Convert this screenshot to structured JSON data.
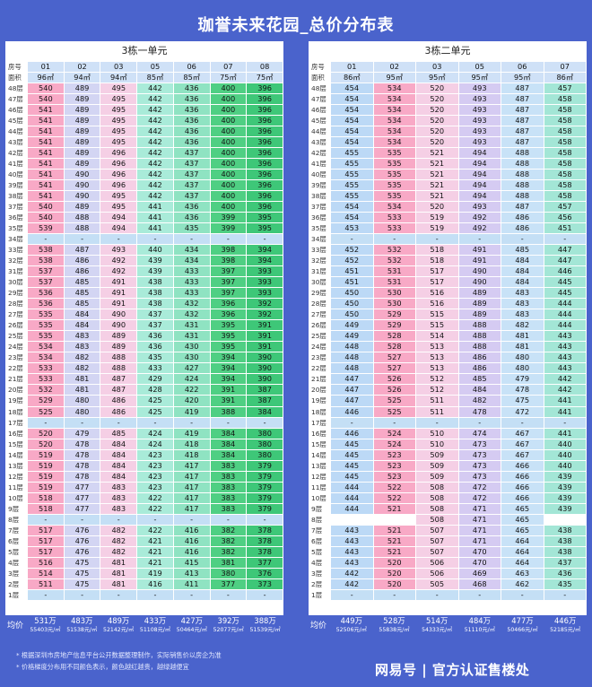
{
  "title": "珈誉未来花园_总价分布表",
  "header_labels": {
    "unit": "房号",
    "area": "面积",
    "avg": "均价"
  },
  "blank_mark": "-",
  "colors": {
    "background": "#4a63cc",
    "high": "#f8a9c6",
    "low": "#3ec778"
  },
  "buildings": [
    {
      "name": "3栋一单元",
      "units": [
        "01",
        "02",
        "03",
        "05",
        "06",
        "07",
        "08"
      ],
      "areas": [
        "96㎡",
        "94㎡",
        "94㎡",
        "85㎡",
        "85㎡",
        "75㎡",
        "75㎡"
      ],
      "col_classes": [
        "c-pink",
        "c-lav",
        "c-lpink",
        "c-teal",
        "c-mint",
        "c-green",
        "c-dgreen"
      ],
      "floors": [
        {
          "f": "48层",
          "v": [
            "540",
            "489",
            "495",
            "442",
            "436",
            "400",
            "396"
          ]
        },
        {
          "f": "47层",
          "v": [
            "540",
            "489",
            "495",
            "442",
            "436",
            "400",
            "396"
          ]
        },
        {
          "f": "46层",
          "v": [
            "541",
            "489",
            "495",
            "442",
            "436",
            "400",
            "396"
          ]
        },
        {
          "f": "45层",
          "v": [
            "541",
            "489",
            "495",
            "442",
            "436",
            "400",
            "396"
          ]
        },
        {
          "f": "44层",
          "v": [
            "541",
            "489",
            "495",
            "442",
            "436",
            "400",
            "396"
          ]
        },
        {
          "f": "43层",
          "v": [
            "541",
            "489",
            "495",
            "442",
            "436",
            "400",
            "396"
          ]
        },
        {
          "f": "42层",
          "v": [
            "541",
            "489",
            "496",
            "442",
            "437",
            "400",
            "396"
          ]
        },
        {
          "f": "41层",
          "v": [
            "541",
            "489",
            "496",
            "442",
            "437",
            "400",
            "396"
          ]
        },
        {
          "f": "40层",
          "v": [
            "541",
            "490",
            "496",
            "442",
            "437",
            "400",
            "396"
          ]
        },
        {
          "f": "39层",
          "v": [
            "541",
            "490",
            "496",
            "442",
            "437",
            "400",
            "396"
          ]
        },
        {
          "f": "38层",
          "v": [
            "541",
            "490",
            "495",
            "442",
            "437",
            "400",
            "396"
          ]
        },
        {
          "f": "37层",
          "v": [
            "540",
            "489",
            "495",
            "441",
            "436",
            "400",
            "396"
          ]
        },
        {
          "f": "36层",
          "v": [
            "540",
            "488",
            "494",
            "441",
            "436",
            "399",
            "395"
          ]
        },
        {
          "f": "35层",
          "v": [
            "539",
            "488",
            "494",
            "441",
            "435",
            "399",
            "395"
          ]
        },
        {
          "f": "34层",
          "gap": true
        },
        {
          "f": "33层",
          "v": [
            "538",
            "487",
            "493",
            "440",
            "434",
            "398",
            "394"
          ]
        },
        {
          "f": "32层",
          "v": [
            "538",
            "486",
            "492",
            "439",
            "434",
            "398",
            "394"
          ]
        },
        {
          "f": "31层",
          "v": [
            "537",
            "486",
            "492",
            "439",
            "433",
            "397",
            "393"
          ]
        },
        {
          "f": "30层",
          "v": [
            "537",
            "485",
            "491",
            "438",
            "433",
            "397",
            "393"
          ]
        },
        {
          "f": "29层",
          "v": [
            "536",
            "485",
            "491",
            "438",
            "433",
            "397",
            "393"
          ]
        },
        {
          "f": "28层",
          "v": [
            "536",
            "485",
            "491",
            "438",
            "432",
            "396",
            "392"
          ]
        },
        {
          "f": "27层",
          "v": [
            "535",
            "484",
            "490",
            "437",
            "432",
            "396",
            "392"
          ]
        },
        {
          "f": "26层",
          "v": [
            "535",
            "484",
            "490",
            "437",
            "431",
            "395",
            "391"
          ]
        },
        {
          "f": "25层",
          "v": [
            "535",
            "483",
            "489",
            "436",
            "431",
            "395",
            "391"
          ]
        },
        {
          "f": "24层",
          "v": [
            "534",
            "483",
            "489",
            "436",
            "430",
            "395",
            "391"
          ]
        },
        {
          "f": "23层",
          "v": [
            "534",
            "482",
            "488",
            "435",
            "430",
            "394",
            "390"
          ]
        },
        {
          "f": "22层",
          "v": [
            "533",
            "482",
            "488",
            "433",
            "427",
            "394",
            "390"
          ]
        },
        {
          "f": "21层",
          "v": [
            "533",
            "481",
            "487",
            "429",
            "424",
            "394",
            "390"
          ]
        },
        {
          "f": "20层",
          "v": [
            "532",
            "481",
            "487",
            "428",
            "422",
            "391",
            "387"
          ]
        },
        {
          "f": "19层",
          "v": [
            "529",
            "480",
            "486",
            "425",
            "420",
            "391",
            "387"
          ]
        },
        {
          "f": "18层",
          "v": [
            "525",
            "480",
            "486",
            "425",
            "419",
            "388",
            "384"
          ]
        },
        {
          "f": "17层",
          "gap": true
        },
        {
          "f": "16层",
          "v": [
            "520",
            "479",
            "485",
            "424",
            "419",
            "384",
            "380"
          ]
        },
        {
          "f": "15层",
          "v": [
            "520",
            "478",
            "484",
            "424",
            "418",
            "384",
            "380"
          ]
        },
        {
          "f": "14层",
          "v": [
            "519",
            "478",
            "484",
            "423",
            "418",
            "384",
            "380"
          ]
        },
        {
          "f": "13层",
          "v": [
            "519",
            "478",
            "484",
            "423",
            "417",
            "383",
            "379"
          ]
        },
        {
          "f": "12层",
          "v": [
            "519",
            "478",
            "484",
            "423",
            "417",
            "383",
            "379"
          ]
        },
        {
          "f": "11层",
          "v": [
            "519",
            "477",
            "483",
            "423",
            "417",
            "383",
            "379"
          ]
        },
        {
          "f": "10层",
          "v": [
            "518",
            "477",
            "483",
            "422",
            "417",
            "383",
            "379"
          ]
        },
        {
          "f": "9层",
          "v": [
            "518",
            "477",
            "483",
            "422",
            "417",
            "383",
            "379"
          ]
        },
        {
          "f": "8层",
          "gap": true
        },
        {
          "f": "7层",
          "v": [
            "517",
            "476",
            "482",
            "422",
            "416",
            "382",
            "378"
          ]
        },
        {
          "f": "6层",
          "v": [
            "517",
            "476",
            "482",
            "421",
            "416",
            "382",
            "378"
          ]
        },
        {
          "f": "5层",
          "v": [
            "517",
            "476",
            "482",
            "421",
            "416",
            "382",
            "378"
          ]
        },
        {
          "f": "4层",
          "v": [
            "516",
            "475",
            "481",
            "421",
            "415",
            "381",
            "377"
          ]
        },
        {
          "f": "3层",
          "v": [
            "514",
            "475",
            "481",
            "419",
            "413",
            "380",
            "376"
          ]
        },
        {
          "f": "2层",
          "v": [
            "511",
            "475",
            "481",
            "416",
            "411",
            "377",
            "373"
          ]
        },
        {
          "f": "1层",
          "gap": true
        }
      ],
      "avg": [
        {
          "p": "531万",
          "u": "55403元/㎡"
        },
        {
          "p": "483万",
          "u": "51538元/㎡"
        },
        {
          "p": "489万",
          "u": "52142元/㎡"
        },
        {
          "p": "433万",
          "u": "51108元/㎡"
        },
        {
          "p": "427万",
          "u": "50464元/㎡"
        },
        {
          "p": "392万",
          "u": "52077元/㎡"
        },
        {
          "p": "388万",
          "u": "51539元/㎡"
        }
      ]
    },
    {
      "name": "3栋二单元",
      "units": [
        "01",
        "02",
        "03",
        "05",
        "06",
        "07"
      ],
      "areas": [
        "86㎡",
        "95㎡",
        "95㎡",
        "95㎡",
        "95㎡",
        "86㎡"
      ],
      "col_classes": [
        "c-blue",
        "c-pink",
        "c-lpink",
        "c-pur",
        "c-lblue",
        "c-aqua"
      ],
      "floors": [
        {
          "f": "48层",
          "v": [
            "454",
            "534",
            "520",
            "493",
            "487",
            "457"
          ]
        },
        {
          "f": "47层",
          "v": [
            "454",
            "534",
            "520",
            "493",
            "487",
            "458"
          ]
        },
        {
          "f": "46层",
          "v": [
            "454",
            "534",
            "520",
            "493",
            "487",
            "458"
          ]
        },
        {
          "f": "45层",
          "v": [
            "454",
            "534",
            "520",
            "493",
            "487",
            "458"
          ]
        },
        {
          "f": "44层",
          "v": [
            "454",
            "534",
            "520",
            "493",
            "487",
            "458"
          ]
        },
        {
          "f": "43层",
          "v": [
            "454",
            "534",
            "520",
            "493",
            "487",
            "458"
          ]
        },
        {
          "f": "42层",
          "v": [
            "455",
            "535",
            "521",
            "494",
            "488",
            "458"
          ]
        },
        {
          "f": "41层",
          "v": [
            "455",
            "535",
            "521",
            "494",
            "488",
            "458"
          ]
        },
        {
          "f": "40层",
          "v": [
            "455",
            "535",
            "521",
            "494",
            "488",
            "458"
          ]
        },
        {
          "f": "39层",
          "v": [
            "455",
            "535",
            "521",
            "494",
            "488",
            "458"
          ]
        },
        {
          "f": "38层",
          "v": [
            "455",
            "535",
            "521",
            "494",
            "488",
            "458"
          ]
        },
        {
          "f": "37层",
          "v": [
            "454",
            "534",
            "520",
            "493",
            "487",
            "457"
          ]
        },
        {
          "f": "36层",
          "v": [
            "454",
            "533",
            "519",
            "492",
            "486",
            "456"
          ]
        },
        {
          "f": "35层",
          "v": [
            "453",
            "533",
            "519",
            "492",
            "486",
            "451"
          ]
        },
        {
          "f": "34层",
          "gap": true
        },
        {
          "f": "33层",
          "v": [
            "452",
            "532",
            "518",
            "491",
            "485",
            "447"
          ]
        },
        {
          "f": "32层",
          "v": [
            "452",
            "532",
            "518",
            "491",
            "484",
            "447"
          ]
        },
        {
          "f": "31层",
          "v": [
            "451",
            "531",
            "517",
            "490",
            "484",
            "446"
          ]
        },
        {
          "f": "30层",
          "v": [
            "451",
            "531",
            "517",
            "490",
            "484",
            "445"
          ]
        },
        {
          "f": "29层",
          "v": [
            "450",
            "530",
            "516",
            "489",
            "483",
            "445"
          ]
        },
        {
          "f": "28层",
          "v": [
            "450",
            "530",
            "516",
            "489",
            "483",
            "444"
          ]
        },
        {
          "f": "27层",
          "v": [
            "450",
            "529",
            "515",
            "489",
            "483",
            "444"
          ]
        },
        {
          "f": "26层",
          "v": [
            "449",
            "529",
            "515",
            "488",
            "482",
            "444"
          ]
        },
        {
          "f": "25层",
          "v": [
            "449",
            "528",
            "514",
            "488",
            "481",
            "443"
          ]
        },
        {
          "f": "24层",
          "v": [
            "448",
            "528",
            "513",
            "488",
            "481",
            "443"
          ]
        },
        {
          "f": "23层",
          "v": [
            "448",
            "527",
            "513",
            "486",
            "480",
            "443"
          ]
        },
        {
          "f": "22层",
          "v": [
            "448",
            "527",
            "513",
            "486",
            "480",
            "443"
          ]
        },
        {
          "f": "21层",
          "v": [
            "447",
            "526",
            "512",
            "485",
            "479",
            "442"
          ]
        },
        {
          "f": "20层",
          "v": [
            "447",
            "526",
            "512",
            "484",
            "478",
            "442"
          ]
        },
        {
          "f": "19层",
          "v": [
            "447",
            "525",
            "511",
            "482",
            "475",
            "441"
          ]
        },
        {
          "f": "18层",
          "v": [
            "446",
            "525",
            "511",
            "478",
            "472",
            "441"
          ]
        },
        {
          "f": "17层",
          "gap": true
        },
        {
          "f": "16层",
          "v": [
            "446",
            "524",
            "510",
            "474",
            "467",
            "441"
          ]
        },
        {
          "f": "15层",
          "v": [
            "445",
            "524",
            "510",
            "473",
            "467",
            "440"
          ]
        },
        {
          "f": "14层",
          "v": [
            "445",
            "523",
            "509",
            "473",
            "467",
            "440"
          ]
        },
        {
          "f": "13层",
          "v": [
            "445",
            "523",
            "509",
            "473",
            "466",
            "440"
          ]
        },
        {
          "f": "12层",
          "v": [
            "445",
            "523",
            "509",
            "473",
            "466",
            "439"
          ]
        },
        {
          "f": "11层",
          "v": [
            "444",
            "522",
            "508",
            "472",
            "466",
            "439"
          ]
        },
        {
          "f": "10层",
          "v": [
            "444",
            "522",
            "508",
            "472",
            "466",
            "439"
          ]
        },
        {
          "f": "9层",
          "v": [
            "444",
            "521",
            "508",
            "471",
            "465",
            "439"
          ]
        },
        {
          "f": "8层",
          "v": [
            "",
            "",
            "508",
            "471",
            "465",
            ""
          ]
        },
        {
          "f": "7层",
          "v": [
            "443",
            "521",
            "507",
            "471",
            "465",
            "438"
          ]
        },
        {
          "f": "6层",
          "v": [
            "443",
            "521",
            "507",
            "471",
            "464",
            "438"
          ]
        },
        {
          "f": "5层",
          "v": [
            "443",
            "521",
            "507",
            "470",
            "464",
            "438"
          ]
        },
        {
          "f": "4层",
          "v": [
            "443",
            "520",
            "506",
            "470",
            "464",
            "437"
          ]
        },
        {
          "f": "3层",
          "v": [
            "442",
            "520",
            "506",
            "469",
            "463",
            "436"
          ]
        },
        {
          "f": "2层",
          "v": [
            "442",
            "520",
            "505",
            "468",
            "462",
            "435"
          ]
        },
        {
          "f": "1层",
          "gap": true
        }
      ],
      "avg": [
        {
          "p": "449万",
          "u": "52506元/㎡"
        },
        {
          "p": "528万",
          "u": "55838元/㎡"
        },
        {
          "p": "514万",
          "u": "54333元/㎡"
        },
        {
          "p": "484万",
          "u": "51110元/㎡"
        },
        {
          "p": "477万",
          "u": "50466元/㎡"
        },
        {
          "p": "446万",
          "u": "52185元/㎡"
        }
      ]
    }
  ],
  "notes": [
    "* 根据深圳市房地产信息平台公开数据整理制作，实际销售价以房企为准",
    "* 价格梯度分布用不同颜色表示，颜色越红越贵，越绿越便宜"
  ],
  "watermark": "网易号 | 官方认证售楼处"
}
